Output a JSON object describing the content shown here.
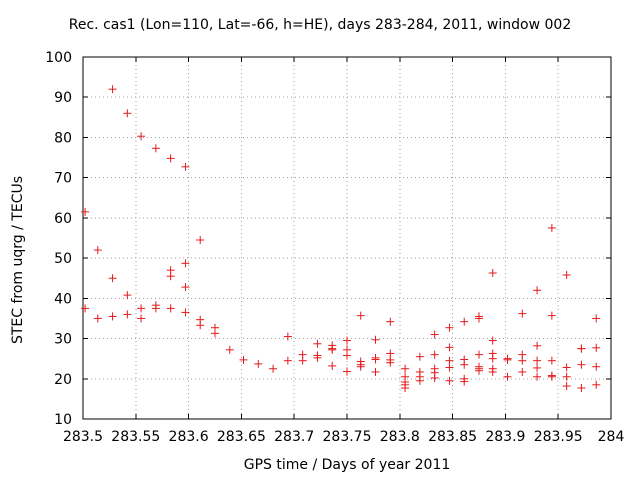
{
  "chart_data": {
    "type": "scatter",
    "title": "Rec. cas1 (Lon=110, Lat=-66, h=HE), days 283-284, 2011, window 002",
    "xlabel": "GPS time / Days of year 2011",
    "ylabel": "STEC from uqrg / TECUs",
    "xlim": [
      283.5,
      284
    ],
    "ylim": [
      10,
      100
    ],
    "xticks": [
      "283.5",
      "283.55",
      "283.6",
      "283.65",
      "283.7",
      "283.75",
      "283.8",
      "283.85",
      "283.9",
      "283.95",
      "284"
    ],
    "yticks": [
      "10",
      "20",
      "30",
      "40",
      "50",
      "60",
      "70",
      "80",
      "90",
      "100"
    ],
    "grid": true,
    "marker": "+",
    "color": "#e41a1c",
    "points": [
      [
        283.502,
        61.5
      ],
      [
        283.502,
        37.5
      ],
      [
        283.514,
        52.0
      ],
      [
        283.514,
        35.0
      ],
      [
        283.528,
        92.0
      ],
      [
        283.528,
        45.0
      ],
      [
        283.528,
        35.5
      ],
      [
        283.542,
        86.0
      ],
      [
        283.542,
        40.8
      ],
      [
        283.542,
        36.0
      ],
      [
        283.555,
        80.3
      ],
      [
        283.555,
        37.5
      ],
      [
        283.555,
        35.0
      ],
      [
        283.569,
        77.3
      ],
      [
        283.569,
        38.3
      ],
      [
        283.569,
        37.5
      ],
      [
        283.583,
        74.8
      ],
      [
        283.583,
        47.0
      ],
      [
        283.583,
        45.5
      ],
      [
        283.583,
        37.5
      ],
      [
        283.597,
        72.7
      ],
      [
        283.597,
        48.7
      ],
      [
        283.597,
        42.8
      ],
      [
        283.597,
        36.5
      ],
      [
        283.611,
        54.5
      ],
      [
        283.611,
        34.7
      ],
      [
        283.611,
        33.3
      ],
      [
        283.625,
        32.7
      ],
      [
        283.625,
        31.3
      ],
      [
        283.639,
        27.2
      ],
      [
        283.652,
        24.7
      ],
      [
        283.666,
        23.7
      ],
      [
        283.68,
        22.5
      ],
      [
        283.694,
        30.5
      ],
      [
        283.694,
        24.5
      ],
      [
        283.708,
        26.0
      ],
      [
        283.708,
        24.5
      ],
      [
        283.722,
        28.7
      ],
      [
        283.722,
        25.8
      ],
      [
        283.722,
        25.2
      ],
      [
        283.736,
        28.3
      ],
      [
        283.736,
        27.5
      ],
      [
        283.736,
        27.2
      ],
      [
        283.736,
        23.2
      ],
      [
        283.75,
        29.5
      ],
      [
        283.75,
        27.2
      ],
      [
        283.75,
        25.8
      ],
      [
        283.75,
        21.8
      ],
      [
        283.763,
        35.7
      ],
      [
        283.763,
        24.3
      ],
      [
        283.763,
        23.5
      ],
      [
        283.763,
        23.0
      ],
      [
        283.777,
        29.7
      ],
      [
        283.777,
        25.2
      ],
      [
        283.777,
        24.8
      ],
      [
        283.777,
        21.7
      ],
      [
        283.791,
        34.2
      ],
      [
        283.791,
        26.3
      ],
      [
        283.791,
        24.7
      ],
      [
        283.791,
        24.0
      ],
      [
        283.805,
        22.5
      ],
      [
        283.805,
        20.5
      ],
      [
        283.805,
        19.2
      ],
      [
        283.805,
        18.5
      ],
      [
        283.805,
        17.7
      ],
      [
        283.819,
        25.5
      ],
      [
        283.819,
        21.7
      ],
      [
        283.819,
        20.5
      ],
      [
        283.819,
        19.5
      ],
      [
        283.833,
        31.0
      ],
      [
        283.833,
        26.0
      ],
      [
        283.833,
        22.5
      ],
      [
        283.833,
        21.5
      ],
      [
        283.833,
        20.2
      ],
      [
        283.847,
        32.7
      ],
      [
        283.847,
        27.8
      ],
      [
        283.847,
        24.5
      ],
      [
        283.847,
        22.8
      ],
      [
        283.847,
        19.5
      ],
      [
        283.861,
        34.2
      ],
      [
        283.861,
        24.8
      ],
      [
        283.861,
        23.5
      ],
      [
        283.861,
        20.0
      ],
      [
        283.861,
        19.3
      ],
      [
        283.875,
        35.5
      ],
      [
        283.875,
        35.0
      ],
      [
        283.875,
        26.0
      ],
      [
        283.875,
        23.0
      ],
      [
        283.875,
        22.5
      ],
      [
        283.875,
        22.0
      ],
      [
        283.888,
        46.3
      ],
      [
        283.888,
        29.5
      ],
      [
        283.888,
        26.3
      ],
      [
        283.888,
        25.0
      ],
      [
        283.888,
        22.5
      ],
      [
        283.888,
        21.7
      ],
      [
        283.902,
        25.0
      ],
      [
        283.902,
        24.7
      ],
      [
        283.902,
        20.5
      ],
      [
        283.916,
        36.2
      ],
      [
        283.916,
        26.0
      ],
      [
        283.916,
        24.5
      ],
      [
        283.916,
        21.7
      ],
      [
        283.93,
        42.0
      ],
      [
        283.93,
        28.2
      ],
      [
        283.93,
        24.5
      ],
      [
        283.93,
        22.7
      ],
      [
        283.93,
        20.5
      ],
      [
        283.944,
        57.5
      ],
      [
        283.944,
        35.7
      ],
      [
        283.944,
        24.5
      ],
      [
        283.944,
        20.8
      ],
      [
        283.944,
        20.5
      ],
      [
        283.958,
        45.8
      ],
      [
        283.958,
        22.8
      ],
      [
        283.958,
        20.5
      ],
      [
        283.958,
        18.2
      ],
      [
        283.972,
        27.5
      ],
      [
        283.972,
        27.5
      ],
      [
        283.972,
        23.5
      ],
      [
        283.972,
        17.7
      ],
      [
        283.986,
        35.0
      ],
      [
        283.986,
        27.7
      ],
      [
        283.986,
        23.0
      ],
      [
        283.986,
        18.5
      ]
    ]
  }
}
